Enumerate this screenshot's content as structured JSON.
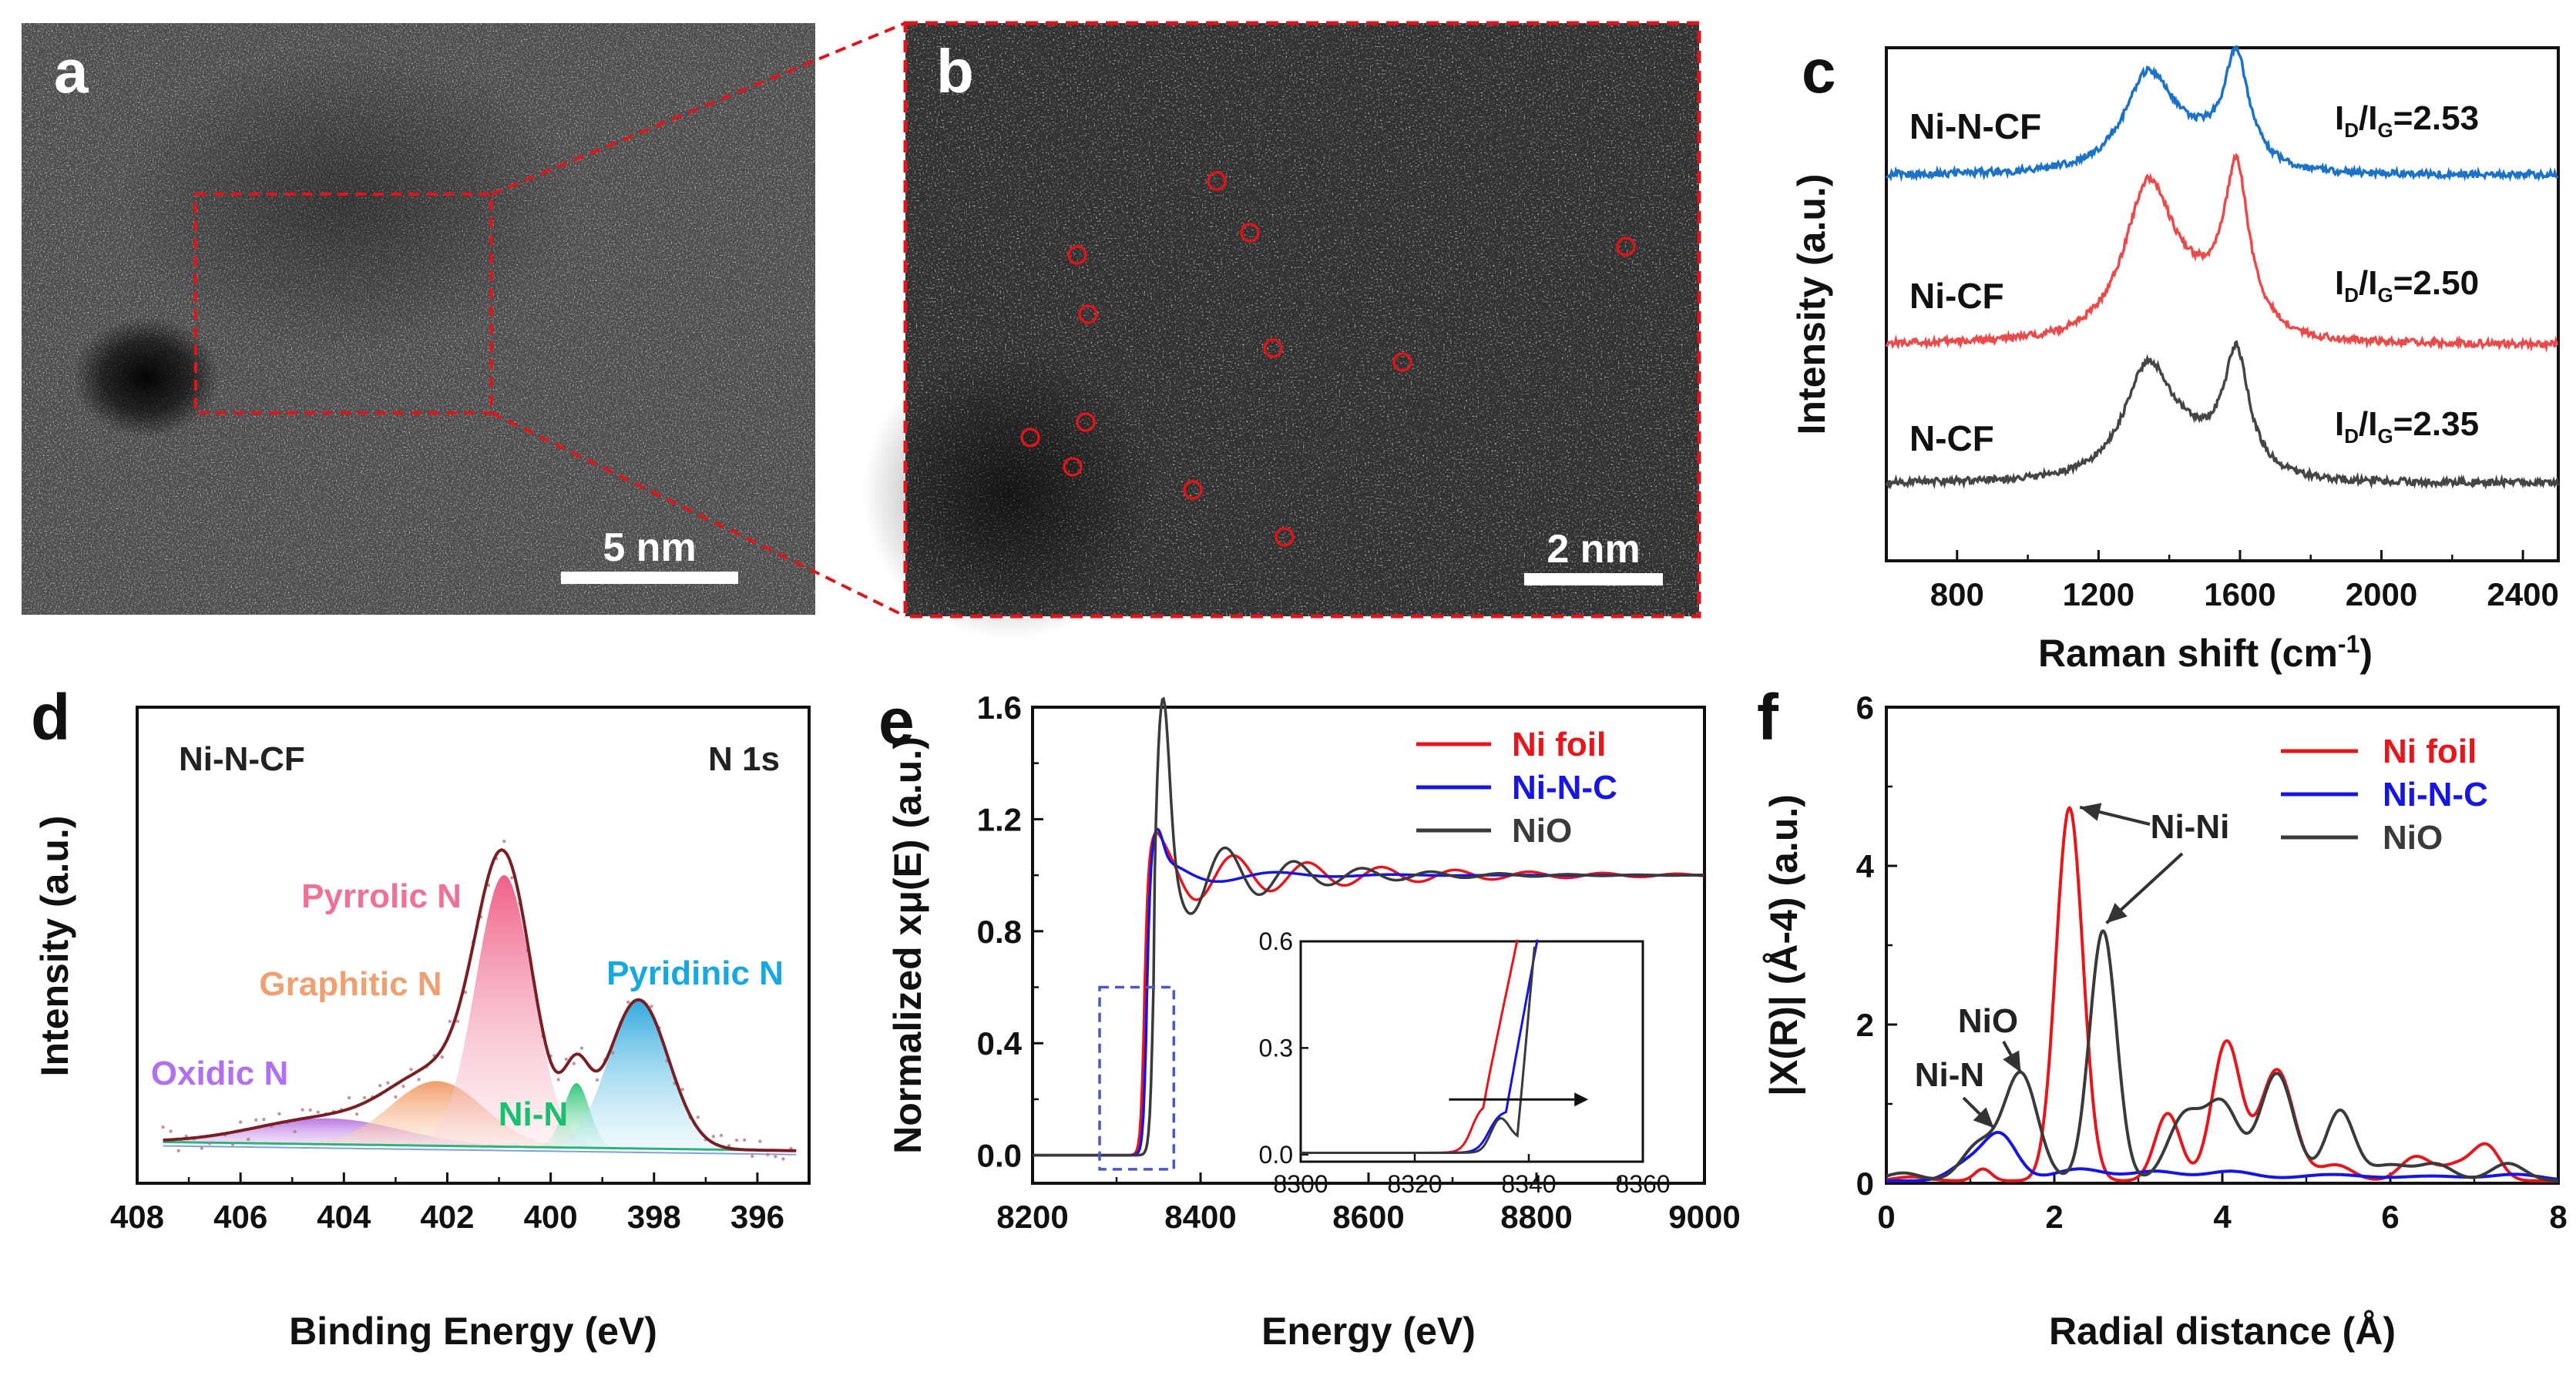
{
  "colors": {
    "red": "#e8161b",
    "blue": "#1515e6",
    "dark": "#3a3a3a",
    "raman_blue": "#1a72c9",
    "raman_red": "#ec4a4a",
    "raman_dark": "#454545",
    "box_dash": "#e0141a",
    "inset_box": "#4a58c8"
  },
  "panels": {
    "a": {
      "letter": "a",
      "scale_bar": "5 nm"
    },
    "b": {
      "letter": "b",
      "scale_bar": "2 nm"
    },
    "c": {
      "letter": "c"
    },
    "d": {
      "letter": "d"
    },
    "e": {
      "letter": "e"
    },
    "f": {
      "letter": "f"
    }
  },
  "chart_data": [
    {
      "id": "c",
      "type": "line",
      "title": "",
      "xlabel": "Raman shift (cm-1)",
      "ylabel": "Intensity (a.u.)",
      "xlim": [
        600,
        2500
      ],
      "xticks": [
        "800",
        "1200",
        "1600",
        "2000",
        "2400"
      ],
      "xtick_values": [
        800,
        1200,
        1600,
        2000,
        2400
      ],
      "series": [
        {
          "name": "Ni-N-CF",
          "ratio": "ID/IG=2.53",
          "ratio_value": 2.53,
          "D_band": 1340,
          "G_band": 1590
        },
        {
          "name": "Ni-CF",
          "ratio": "ID/IG=2.50",
          "ratio_value": 2.5,
          "D_band": 1340,
          "G_band": 1590
        },
        {
          "name": "N-CF",
          "ratio": "ID/IG=2.35",
          "ratio_value": 2.35,
          "D_band": 1340,
          "G_band": 1590
        }
      ]
    },
    {
      "id": "d",
      "type": "area",
      "title": "Ni-N-CF",
      "subtitle": "N 1s",
      "xlabel": "Binding Energy (eV)",
      "ylabel": "Intensity (a.u.)",
      "xlim": [
        408,
        395
      ],
      "xticks": [
        "408",
        "406",
        "404",
        "402",
        "400",
        "398",
        "396"
      ],
      "xtick_values": [
        408,
        406,
        404,
        402,
        400,
        398,
        396
      ],
      "peaks": [
        {
          "name": "Pyrrolic N",
          "center": 400.9,
          "height": 0.84,
          "width": 0.55
        },
        {
          "name": "Graphitic N",
          "center": 402.2,
          "height": 0.2,
          "width": 0.9
        },
        {
          "name": "Oxidic N",
          "center": 404.3,
          "height": 0.08,
          "width": 1.4
        },
        {
          "name": "Ni-N",
          "center": 399.5,
          "height": 0.2,
          "width": 0.25
        },
        {
          "name": "Pyridinic N",
          "center": 398.3,
          "height": 0.46,
          "width": 0.58
        }
      ]
    },
    {
      "id": "e",
      "type": "line",
      "xlabel": "Energy (eV)",
      "ylabel": "Normalized xμ(E) (a.u.)",
      "xlim": [
        8200,
        9000
      ],
      "ylim": [
        -0.1,
        1.6
      ],
      "xticks": [
        "8200",
        "8400",
        "8600",
        "8800",
        "9000"
      ],
      "xtick_values": [
        8200,
        8400,
        8600,
        8800,
        9000
      ],
      "yticks": [
        "0.0",
        "0.4",
        "0.8",
        "1.2",
        "1.6"
      ],
      "ytick_values": [
        0,
        0.4,
        0.8,
        1.2,
        1.6
      ],
      "legend": [
        "Ni foil",
        "Ni-N-C",
        "NiO"
      ],
      "inset": {
        "xlim": [
          8300,
          8360
        ],
        "ylim": [
          -0.02,
          0.6
        ],
        "xticks": [
          "8300",
          "8320",
          "8340",
          "8360"
        ],
        "xtick_values": [
          8300,
          8320,
          8340,
          8360
        ],
        "yticks": [
          "0.0",
          "0.3",
          "0.6"
        ],
        "ytick_values": [
          0,
          0.3,
          0.6
        ],
        "edge_positions": {
          "Ni foil": 8331,
          "Ni-N-C": 8334,
          "NiO": 8339
        }
      }
    },
    {
      "id": "f",
      "type": "line",
      "xlabel": "Radial distance (Å)",
      "ylabel": "|X(R)| (Å-4) (a.u.)",
      "xlim": [
        0,
        8
      ],
      "ylim": [
        0,
        6
      ],
      "xticks": [
        "0",
        "2",
        "4",
        "6",
        "8"
      ],
      "xtick_values": [
        0,
        2,
        4,
        6,
        8
      ],
      "yticks": [
        "0",
        "2",
        "4",
        "6"
      ],
      "ytick_values": [
        0,
        2,
        4,
        6
      ],
      "legend": [
        "Ni foil",
        "Ni-N-C",
        "NiO"
      ],
      "annotations": [
        "Ni-Ni",
        "NiO",
        "Ni-N"
      ],
      "peaks": {
        "Ni foil": {
          "r": 2.18,
          "value": 4.7
        },
        "NiO": {
          "r": 2.58,
          "value": 3.15
        },
        "Ni-N-C": {
          "r": 1.35,
          "value": 0.58
        }
      }
    }
  ]
}
